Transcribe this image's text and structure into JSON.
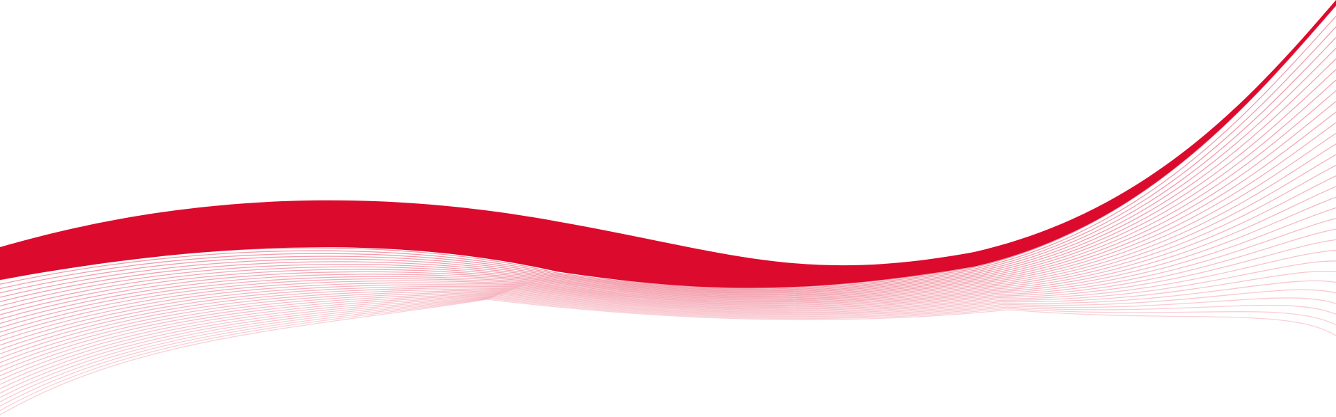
{
  "background_color": "#ffffff",
  "accent_color": "#dc0a2d",
  "line_color": "#e8445f",
  "fan_line_count": 32
}
